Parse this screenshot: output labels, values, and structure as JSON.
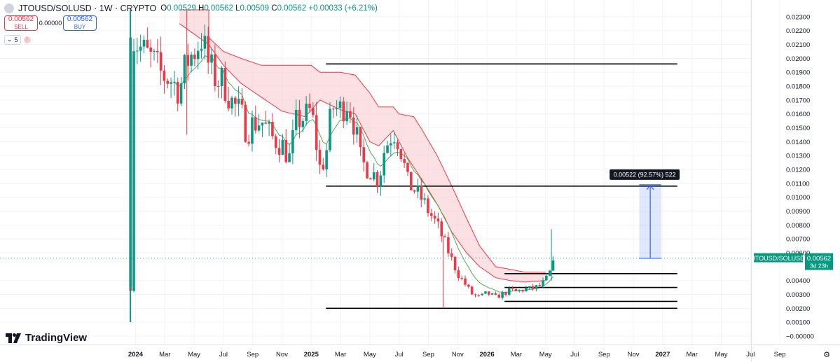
{
  "header": {
    "symbol": "JTOUSD/SOLUSD · 1W · CRYPTO",
    "open_label": "O",
    "open": "0.00529",
    "high_label": "H",
    "high": "0.00562",
    "low_label": "L",
    "low": "0.00509",
    "close_label": "C",
    "close": "0.00562",
    "change": "+0.00033 (+6.21%)"
  },
  "trade": {
    "sell_price": "0.00562",
    "sell_label": "SELL",
    "spread": "0.00000",
    "buy_price": "0.00562",
    "buy_label": "BUY"
  },
  "indicators": {
    "count": "5"
  },
  "brand": {
    "name": "TradingView"
  },
  "colors": {
    "up": "#089981",
    "down": "#f23645",
    "cloud": "#f7c9cc",
    "ema_fast": "#4caf50",
    "accent": "#2962ff"
  },
  "chart_data": {
    "type": "candlestick",
    "y_ticks": [
      "0.02300",
      "0.02200",
      "0.02100",
      "0.02000",
      "0.01900",
      "0.01800",
      "0.01700",
      "0.01600",
      "0.01500",
      "0.01400",
      "0.01300",
      "0.01200",
      "0.01100",
      "0.01000",
      "0.00900",
      "0.00800",
      "0.00700",
      "0.00600",
      "0.00400",
      "0.00300",
      "0.00200",
      "0.00100",
      "−0.00000"
    ],
    "ylim": [
      -5e-05,
      0.0235
    ],
    "x_labels": [
      {
        "label": "2024",
        "t": 0,
        "bold": true
      },
      {
        "label": "Mar",
        "t": 2,
        "bold": false
      },
      {
        "label": "May",
        "t": 4,
        "bold": false
      },
      {
        "label": "Jul",
        "t": 6,
        "bold": false
      },
      {
        "label": "Sep",
        "t": 8,
        "bold": false
      },
      {
        "label": "Nov",
        "t": 10,
        "bold": false
      },
      {
        "label": "2025",
        "t": 12,
        "bold": true
      },
      {
        "label": "Mar",
        "t": 14,
        "bold": false
      },
      {
        "label": "May",
        "t": 16,
        "bold": false
      },
      {
        "label": "Jul",
        "t": 18,
        "bold": false
      },
      {
        "label": "Sep",
        "t": 20,
        "bold": false
      },
      {
        "label": "Nov",
        "t": 22,
        "bold": false
      },
      {
        "label": "2026",
        "t": 24,
        "bold": true
      },
      {
        "label": "Mar",
        "t": 26,
        "bold": false
      },
      {
        "label": "May",
        "t": 28,
        "bold": false
      },
      {
        "label": "Jul",
        "t": 30,
        "bold": false
      },
      {
        "label": "Sep",
        "t": 32,
        "bold": false
      },
      {
        "label": "Nov",
        "t": 34,
        "bold": false
      },
      {
        "label": "2027",
        "t": 36,
        "bold": true
      },
      {
        "label": "Mar",
        "t": 38,
        "bold": false
      },
      {
        "label": "May",
        "t": 40,
        "bold": false
      },
      {
        "label": "Jul",
        "t": 42,
        "bold": false
      },
      {
        "label": "Sep",
        "t": 44,
        "bold": false
      }
    ],
    "close_anchors": [
      [
        -0.35,
        0.0035
      ],
      [
        -0.2,
        0.0215
      ],
      [
        0.5,
        0.0205
      ],
      [
        1.2,
        0.0198
      ],
      [
        1.8,
        0.0188
      ],
      [
        2.4,
        0.0185
      ],
      [
        3.0,
        0.0177
      ],
      [
        3.5,
        0.0198
      ],
      [
        4.0,
        0.0205
      ],
      [
        4.5,
        0.0215
      ],
      [
        5.0,
        0.0195
      ],
      [
        5.5,
        0.0185
      ],
      [
        6.0,
        0.0183
      ],
      [
        6.6,
        0.0168
      ],
      [
        7.2,
        0.016
      ],
      [
        7.6,
        0.0147
      ],
      [
        8.0,
        0.0153
      ],
      [
        8.6,
        0.0155
      ],
      [
        9.3,
        0.0143
      ],
      [
        10.0,
        0.0138
      ],
      [
        10.5,
        0.0128
      ],
      [
        11.0,
        0.0155
      ],
      [
        11.6,
        0.0158
      ],
      [
        12.0,
        0.0163
      ],
      [
        12.6,
        0.012
      ],
      [
        13.0,
        0.013
      ],
      [
        13.4,
        0.0165
      ],
      [
        14.0,
        0.0163
      ],
      [
        14.5,
        0.017
      ],
      [
        15.0,
        0.015
      ],
      [
        15.4,
        0.0125
      ],
      [
        16.0,
        0.012
      ],
      [
        16.6,
        0.0112
      ],
      [
        17.0,
        0.0135
      ],
      [
        17.6,
        0.0148
      ],
      [
        18.0,
        0.014
      ],
      [
        18.6,
        0.011
      ],
      [
        19.0,
        0.0106
      ],
      [
        19.6,
        0.0098
      ],
      [
        20.0,
        0.009
      ],
      [
        20.6,
        0.008
      ],
      [
        21.0,
        0.007
      ],
      [
        21.6,
        0.0055
      ],
      [
        22.0,
        0.0045
      ],
      [
        22.6,
        0.0036
      ],
      [
        23.0,
        0.003
      ],
      [
        23.5,
        0.0028
      ],
      [
        24.0,
        0.0031
      ],
      [
        24.6,
        0.0028
      ],
      [
        25.0,
        0.003
      ],
      [
        25.6,
        0.0033
      ],
      [
        26.0,
        0.0032
      ],
      [
        26.6,
        0.0034
      ],
      [
        27.0,
        0.0034
      ],
      [
        27.6,
        0.0036
      ],
      [
        28.0,
        0.004
      ],
      [
        28.4,
        0.0048
      ],
      [
        28.7,
        0.00562
      ]
    ],
    "last_x": 28.7,
    "candles_per_month": 4.33,
    "spikes": [
      {
        "t": -0.35,
        "high": 0.0235,
        "low": 0.001
      },
      {
        "t": 3.5,
        "high": 0.0235,
        "low": 0.0145
      },
      {
        "t": 21.0,
        "high": 0.0072,
        "low": 0.002
      },
      {
        "t": 28.4,
        "high": 0.0077,
        "low": 0.004
      }
    ],
    "ichimoku_cloud": {
      "upper": [
        [
          3.0,
          0.0235
        ],
        [
          5.0,
          0.0235
        ],
        [
          5.0,
          0.0215
        ],
        [
          6.0,
          0.0205
        ],
        [
          7.2,
          0.02
        ],
        [
          8.6,
          0.0195
        ],
        [
          12.0,
          0.0195
        ],
        [
          12.6,
          0.019
        ],
        [
          14.0,
          0.019
        ],
        [
          15.0,
          0.0188
        ],
        [
          16.0,
          0.0175
        ],
        [
          16.6,
          0.0165
        ],
        [
          17.6,
          0.0165
        ],
        [
          18.0,
          0.016
        ],
        [
          19.0,
          0.0158
        ],
        [
          19.6,
          0.0148
        ],
        [
          20.6,
          0.013
        ],
        [
          21.6,
          0.0108
        ],
        [
          22.6,
          0.0085
        ],
        [
          23.5,
          0.0065
        ],
        [
          24.6,
          0.005
        ],
        [
          25.6,
          0.0048
        ],
        [
          26.6,
          0.0046
        ],
        [
          28.0,
          0.0046
        ]
      ],
      "lower": [
        [
          3.0,
          0.0225
        ],
        [
          5.0,
          0.021
        ],
        [
          6.0,
          0.0195
        ],
        [
          7.2,
          0.0182
        ],
        [
          8.6,
          0.0172
        ],
        [
          10.0,
          0.0162
        ],
        [
          11.6,
          0.0158
        ],
        [
          12.6,
          0.017
        ],
        [
          14.0,
          0.0163
        ],
        [
          15.0,
          0.016
        ],
        [
          16.0,
          0.014
        ],
        [
          16.6,
          0.0137
        ],
        [
          17.6,
          0.0148
        ],
        [
          18.6,
          0.0128
        ],
        [
          19.6,
          0.0112
        ],
        [
          20.6,
          0.0095
        ],
        [
          21.6,
          0.0075
        ],
        [
          22.6,
          0.006
        ],
        [
          23.5,
          0.005
        ],
        [
          24.6,
          0.0042
        ],
        [
          25.6,
          0.004
        ],
        [
          26.6,
          0.0039
        ],
        [
          28.0,
          0.004
        ]
      ]
    },
    "horizontal_levels": [
      {
        "y": 0.0196,
        "t0": 13.0,
        "t1": 37.0
      },
      {
        "y": 0.0108,
        "t0": 13.0,
        "t1": 37.0
      },
      {
        "y": 0.0045,
        "t0": 25.2,
        "t1": 37.0
      },
      {
        "y": 0.0035,
        "t0": 25.2,
        "t1": 37.0
      },
      {
        "y": 0.0025,
        "t0": 25.2,
        "t1": 37.0
      },
      {
        "y": 0.002,
        "t0": 13.0,
        "t1": 37.0
      }
    ],
    "measure": {
      "t0": 34.4,
      "t1": 35.9,
      "y0": 0.0056,
      "y1": 0.0109,
      "label": "0.00522 (92.57%) 522"
    },
    "price_label": {
      "symbol": "JTOUSD/SOLUSD",
      "price": "0.00562",
      "countdown": "3d 23h",
      "y": 0.00562
    }
  }
}
